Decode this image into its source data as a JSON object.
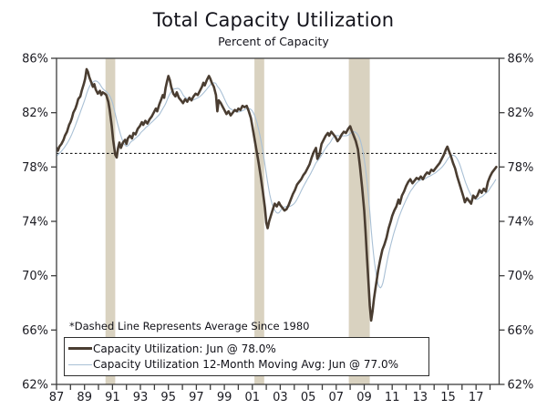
{
  "title": "Total Capacity Utilization",
  "subtitle": "Percent of Capacity",
  "note": "*Dashed Line Represents Average Since 1980",
  "legend": [
    {
      "label": "Capacity Utilization: Jun @ 78.0%",
      "color": "#4a3d31",
      "thickness": 3
    },
    {
      "label": "Capacity Utilization 12-Month Moving Avg: Jun @ 77.0%",
      "color": "#a9c0d5",
      "thickness": 1
    }
  ],
  "colors": {
    "background": "#ffffff",
    "axis": "#3d3d3d",
    "text": "#1b1b22",
    "recession_band": "#d9d2c0",
    "capacity_line": "#4a3d31",
    "moving_avg_line": "#a9c0d5",
    "dashed_line": "#000000"
  },
  "chart_data": {
    "type": "line",
    "title": "Total Capacity Utilization",
    "subtitle": "Percent of Capacity",
    "xlabel": "",
    "ylabel": "Percent of Capacity",
    "xlim": [
      1987,
      2018.65
    ],
    "ylim": [
      62,
      86
    ],
    "grid": false,
    "legend_position": "lower-left",
    "y_ticks": [
      {
        "v": 86,
        "label": "86%"
      },
      {
        "v": 82,
        "label": "82%"
      },
      {
        "v": 78,
        "label": "78%"
      },
      {
        "v": 74,
        "label": "74%"
      },
      {
        "v": 70,
        "label": "70%"
      },
      {
        "v": 66,
        "label": "66%"
      }
    ],
    "y_ticks_last": {
      "v": 62,
      "label": "62%"
    },
    "x_ticks": [
      {
        "v": 1987,
        "label": "87"
      },
      {
        "v": 1989,
        "label": "89"
      },
      {
        "v": 1991,
        "label": "91"
      },
      {
        "v": 1993,
        "label": "93"
      },
      {
        "v": 1995,
        "label": "95"
      },
      {
        "v": 1997,
        "label": "97"
      },
      {
        "v": 1999,
        "label": "99"
      },
      {
        "v": 2001,
        "label": "01"
      },
      {
        "v": 2003,
        "label": "03"
      },
      {
        "v": 2005,
        "label": "05"
      },
      {
        "v": 2007,
        "label": "07"
      },
      {
        "v": 2009,
        "label": "09"
      },
      {
        "v": 2011,
        "label": "11"
      },
      {
        "v": 2013,
        "label": "13"
      },
      {
        "v": 2015,
        "label": "15"
      },
      {
        "v": 2017,
        "label": "17"
      }
    ],
    "minor_x_tick_step": 1,
    "average_line": {
      "value": 79.0,
      "label": "Average Since 1980"
    },
    "recession_bands": [
      [
        1990.5,
        1991.2
      ],
      [
        2001.15,
        2001.85
      ],
      [
        2007.9,
        2009.4
      ]
    ],
    "series": [
      {
        "name": "Capacity Utilization",
        "current": "Jun @ 78.0%",
        "points": [
          [
            1986.0,
            78.2
          ],
          [
            1986.33,
            78.6
          ],
          [
            1986.66,
            78.9
          ],
          [
            1986.85,
            79.1
          ],
          [
            1987.0,
            79.4
          ],
          [
            1987.1,
            79.2
          ],
          [
            1987.2,
            79.5
          ],
          [
            1987.35,
            79.7
          ],
          [
            1987.5,
            80.0
          ],
          [
            1987.6,
            80.3
          ],
          [
            1987.75,
            80.6
          ],
          [
            1987.9,
            81.1
          ],
          [
            1988.0,
            81.3
          ],
          [
            1988.1,
            81.6
          ],
          [
            1988.2,
            82.0
          ],
          [
            1988.35,
            82.3
          ],
          [
            1988.45,
            82.6
          ],
          [
            1988.55,
            83.0
          ],
          [
            1988.7,
            83.2
          ],
          [
            1988.8,
            83.6
          ],
          [
            1988.95,
            84.1
          ],
          [
            1989.05,
            84.5
          ],
          [
            1989.15,
            85.2
          ],
          [
            1989.25,
            85.0
          ],
          [
            1989.35,
            84.6
          ],
          [
            1989.5,
            84.2
          ],
          [
            1989.6,
            83.9
          ],
          [
            1989.7,
            84.1
          ],
          [
            1989.8,
            83.7
          ],
          [
            1989.95,
            83.4
          ],
          [
            1990.1,
            83.6
          ],
          [
            1990.2,
            83.3
          ],
          [
            1990.3,
            83.5
          ],
          [
            1990.45,
            83.4
          ],
          [
            1990.55,
            83.3
          ],
          [
            1990.7,
            82.8
          ],
          [
            1990.8,
            82.2
          ],
          [
            1990.95,
            81.0
          ],
          [
            1991.05,
            80.0
          ],
          [
            1991.2,
            78.9
          ],
          [
            1991.3,
            78.7
          ],
          [
            1991.4,
            79.4
          ],
          [
            1991.5,
            79.8
          ],
          [
            1991.6,
            79.4
          ],
          [
            1991.75,
            79.8
          ],
          [
            1991.9,
            80.0
          ],
          [
            1992.0,
            79.7
          ],
          [
            1992.1,
            80.1
          ],
          [
            1992.25,
            80.3
          ],
          [
            1992.4,
            80.1
          ],
          [
            1992.5,
            80.5
          ],
          [
            1992.65,
            80.4
          ],
          [
            1992.8,
            80.8
          ],
          [
            1992.95,
            81.0
          ],
          [
            1993.1,
            81.3
          ],
          [
            1993.2,
            81.1
          ],
          [
            1993.35,
            81.4
          ],
          [
            1993.5,
            81.2
          ],
          [
            1993.65,
            81.5
          ],
          [
            1993.8,
            81.7
          ],
          [
            1993.95,
            82.0
          ],
          [
            1994.1,
            82.3
          ],
          [
            1994.2,
            82.1
          ],
          [
            1994.35,
            82.6
          ],
          [
            1994.5,
            83.0
          ],
          [
            1994.6,
            83.3
          ],
          [
            1994.7,
            83.1
          ],
          [
            1994.8,
            83.8
          ],
          [
            1994.9,
            84.3
          ],
          [
            1995.0,
            84.7
          ],
          [
            1995.1,
            84.4
          ],
          [
            1995.2,
            83.9
          ],
          [
            1995.35,
            83.4
          ],
          [
            1995.5,
            83.2
          ],
          [
            1995.6,
            83.5
          ],
          [
            1995.75,
            83.1
          ],
          [
            1995.9,
            82.9
          ],
          [
            1996.05,
            82.7
          ],
          [
            1996.2,
            83.0
          ],
          [
            1996.35,
            82.8
          ],
          [
            1996.5,
            83.1
          ],
          [
            1996.65,
            82.9
          ],
          [
            1996.8,
            83.2
          ],
          [
            1996.95,
            83.4
          ],
          [
            1997.1,
            83.3
          ],
          [
            1997.25,
            83.6
          ],
          [
            1997.4,
            83.9
          ],
          [
            1997.5,
            84.2
          ],
          [
            1997.6,
            84.0
          ],
          [
            1997.75,
            84.4
          ],
          [
            1997.9,
            84.7
          ],
          [
            1998.0,
            84.5
          ],
          [
            1998.1,
            84.2
          ],
          [
            1998.25,
            83.9
          ],
          [
            1998.4,
            83.3
          ],
          [
            1998.5,
            82.1
          ],
          [
            1998.6,
            82.9
          ],
          [
            1998.75,
            82.7
          ],
          [
            1998.9,
            82.4
          ],
          [
            1999.0,
            82.2
          ],
          [
            1999.15,
            81.9
          ],
          [
            1999.3,
            82.1
          ],
          [
            1999.45,
            81.8
          ],
          [
            1999.6,
            82.0
          ],
          [
            1999.75,
            82.2
          ],
          [
            1999.9,
            82.1
          ],
          [
            2000.0,
            82.3
          ],
          [
            2000.15,
            82.2
          ],
          [
            2000.3,
            82.5
          ],
          [
            2000.45,
            82.4
          ],
          [
            2000.6,
            82.5
          ],
          [
            2000.75,
            82.1
          ],
          [
            2000.9,
            81.6
          ],
          [
            2001.0,
            81.0
          ],
          [
            2001.15,
            80.1
          ],
          [
            2001.3,
            79.2
          ],
          [
            2001.45,
            78.3
          ],
          [
            2001.6,
            77.3
          ],
          [
            2001.75,
            76.2
          ],
          [
            2001.9,
            75.0
          ],
          [
            2002.0,
            73.9
          ],
          [
            2002.1,
            73.5
          ],
          [
            2002.2,
            74.0
          ],
          [
            2002.35,
            74.5
          ],
          [
            2002.5,
            75.0
          ],
          [
            2002.6,
            75.3
          ],
          [
            2002.75,
            75.1
          ],
          [
            2002.9,
            75.4
          ],
          [
            2003.0,
            75.2
          ],
          [
            2003.15,
            75.0
          ],
          [
            2003.3,
            74.8
          ],
          [
            2003.45,
            74.9
          ],
          [
            2003.6,
            75.2
          ],
          [
            2003.75,
            75.6
          ],
          [
            2003.9,
            76.0
          ],
          [
            2004.05,
            76.3
          ],
          [
            2004.2,
            76.7
          ],
          [
            2004.35,
            76.9
          ],
          [
            2004.5,
            77.1
          ],
          [
            2004.65,
            77.4
          ],
          [
            2004.8,
            77.6
          ],
          [
            2004.95,
            77.9
          ],
          [
            2005.1,
            78.2
          ],
          [
            2005.25,
            78.7
          ],
          [
            2005.4,
            79.1
          ],
          [
            2005.55,
            79.4
          ],
          [
            2005.65,
            78.6
          ],
          [
            2005.8,
            78.9
          ],
          [
            2005.95,
            79.7
          ],
          [
            2006.1,
            80.0
          ],
          [
            2006.25,
            80.3
          ],
          [
            2006.4,
            80.5
          ],
          [
            2006.5,
            80.3
          ],
          [
            2006.65,
            80.6
          ],
          [
            2006.8,
            80.4
          ],
          [
            2006.95,
            80.2
          ],
          [
            2007.1,
            79.9
          ],
          [
            2007.25,
            80.1
          ],
          [
            2007.4,
            80.4
          ],
          [
            2007.55,
            80.6
          ],
          [
            2007.7,
            80.5
          ],
          [
            2007.85,
            80.8
          ],
          [
            2008.0,
            81.0
          ],
          [
            2008.1,
            80.7
          ],
          [
            2008.25,
            80.3
          ],
          [
            2008.4,
            79.9
          ],
          [
            2008.55,
            79.3
          ],
          [
            2008.7,
            78.0
          ],
          [
            2008.85,
            76.5
          ],
          [
            2009.0,
            74.8
          ],
          [
            2009.1,
            73.2
          ],
          [
            2009.2,
            71.4
          ],
          [
            2009.3,
            69.6
          ],
          [
            2009.4,
            67.8
          ],
          [
            2009.5,
            66.7
          ],
          [
            2009.6,
            67.4
          ],
          [
            2009.7,
            68.3
          ],
          [
            2009.8,
            69.0
          ],
          [
            2009.9,
            69.7
          ],
          [
            2010.0,
            70.4
          ],
          [
            2010.15,
            71.2
          ],
          [
            2010.3,
            71.9
          ],
          [
            2010.45,
            72.3
          ],
          [
            2010.6,
            72.8
          ],
          [
            2010.75,
            73.5
          ],
          [
            2010.9,
            74.0
          ],
          [
            2011.0,
            74.4
          ],
          [
            2011.15,
            74.8
          ],
          [
            2011.3,
            75.1
          ],
          [
            2011.45,
            75.6
          ],
          [
            2011.55,
            75.3
          ],
          [
            2011.7,
            75.9
          ],
          [
            2011.85,
            76.2
          ],
          [
            2012.0,
            76.6
          ],
          [
            2012.15,
            76.9
          ],
          [
            2012.3,
            77.1
          ],
          [
            2012.45,
            76.8
          ],
          [
            2012.6,
            77.0
          ],
          [
            2012.75,
            77.2
          ],
          [
            2012.9,
            77.1
          ],
          [
            2013.05,
            77.3
          ],
          [
            2013.2,
            77.1
          ],
          [
            2013.35,
            77.4
          ],
          [
            2013.5,
            77.6
          ],
          [
            2013.65,
            77.5
          ],
          [
            2013.8,
            77.8
          ],
          [
            2013.95,
            77.7
          ],
          [
            2014.1,
            77.9
          ],
          [
            2014.25,
            78.1
          ],
          [
            2014.4,
            78.3
          ],
          [
            2014.55,
            78.6
          ],
          [
            2014.7,
            78.9
          ],
          [
            2014.85,
            79.3
          ],
          [
            2014.95,
            79.5
          ],
          [
            2015.05,
            79.2
          ],
          [
            2015.2,
            78.8
          ],
          [
            2015.35,
            78.3
          ],
          [
            2015.5,
            77.9
          ],
          [
            2015.65,
            77.3
          ],
          [
            2015.8,
            76.8
          ],
          [
            2015.95,
            76.3
          ],
          [
            2016.1,
            75.8
          ],
          [
            2016.2,
            75.4
          ],
          [
            2016.35,
            75.7
          ],
          [
            2016.5,
            75.5
          ],
          [
            2016.65,
            75.3
          ],
          [
            2016.8,
            75.9
          ],
          [
            2016.95,
            75.7
          ],
          [
            2017.1,
            75.9
          ],
          [
            2017.25,
            76.3
          ],
          [
            2017.4,
            76.1
          ],
          [
            2017.55,
            76.4
          ],
          [
            2017.7,
            76.2
          ],
          [
            2017.85,
            76.9
          ],
          [
            2018.0,
            77.3
          ],
          [
            2018.15,
            77.6
          ],
          [
            2018.3,
            77.8
          ],
          [
            2018.45,
            78.0
          ]
        ]
      },
      {
        "name": "Capacity Utilization 12-Month Moving Avg",
        "current": "Jun @ 77.0%",
        "derived": "trailing_12_month_average_of_series_0"
      }
    ]
  }
}
